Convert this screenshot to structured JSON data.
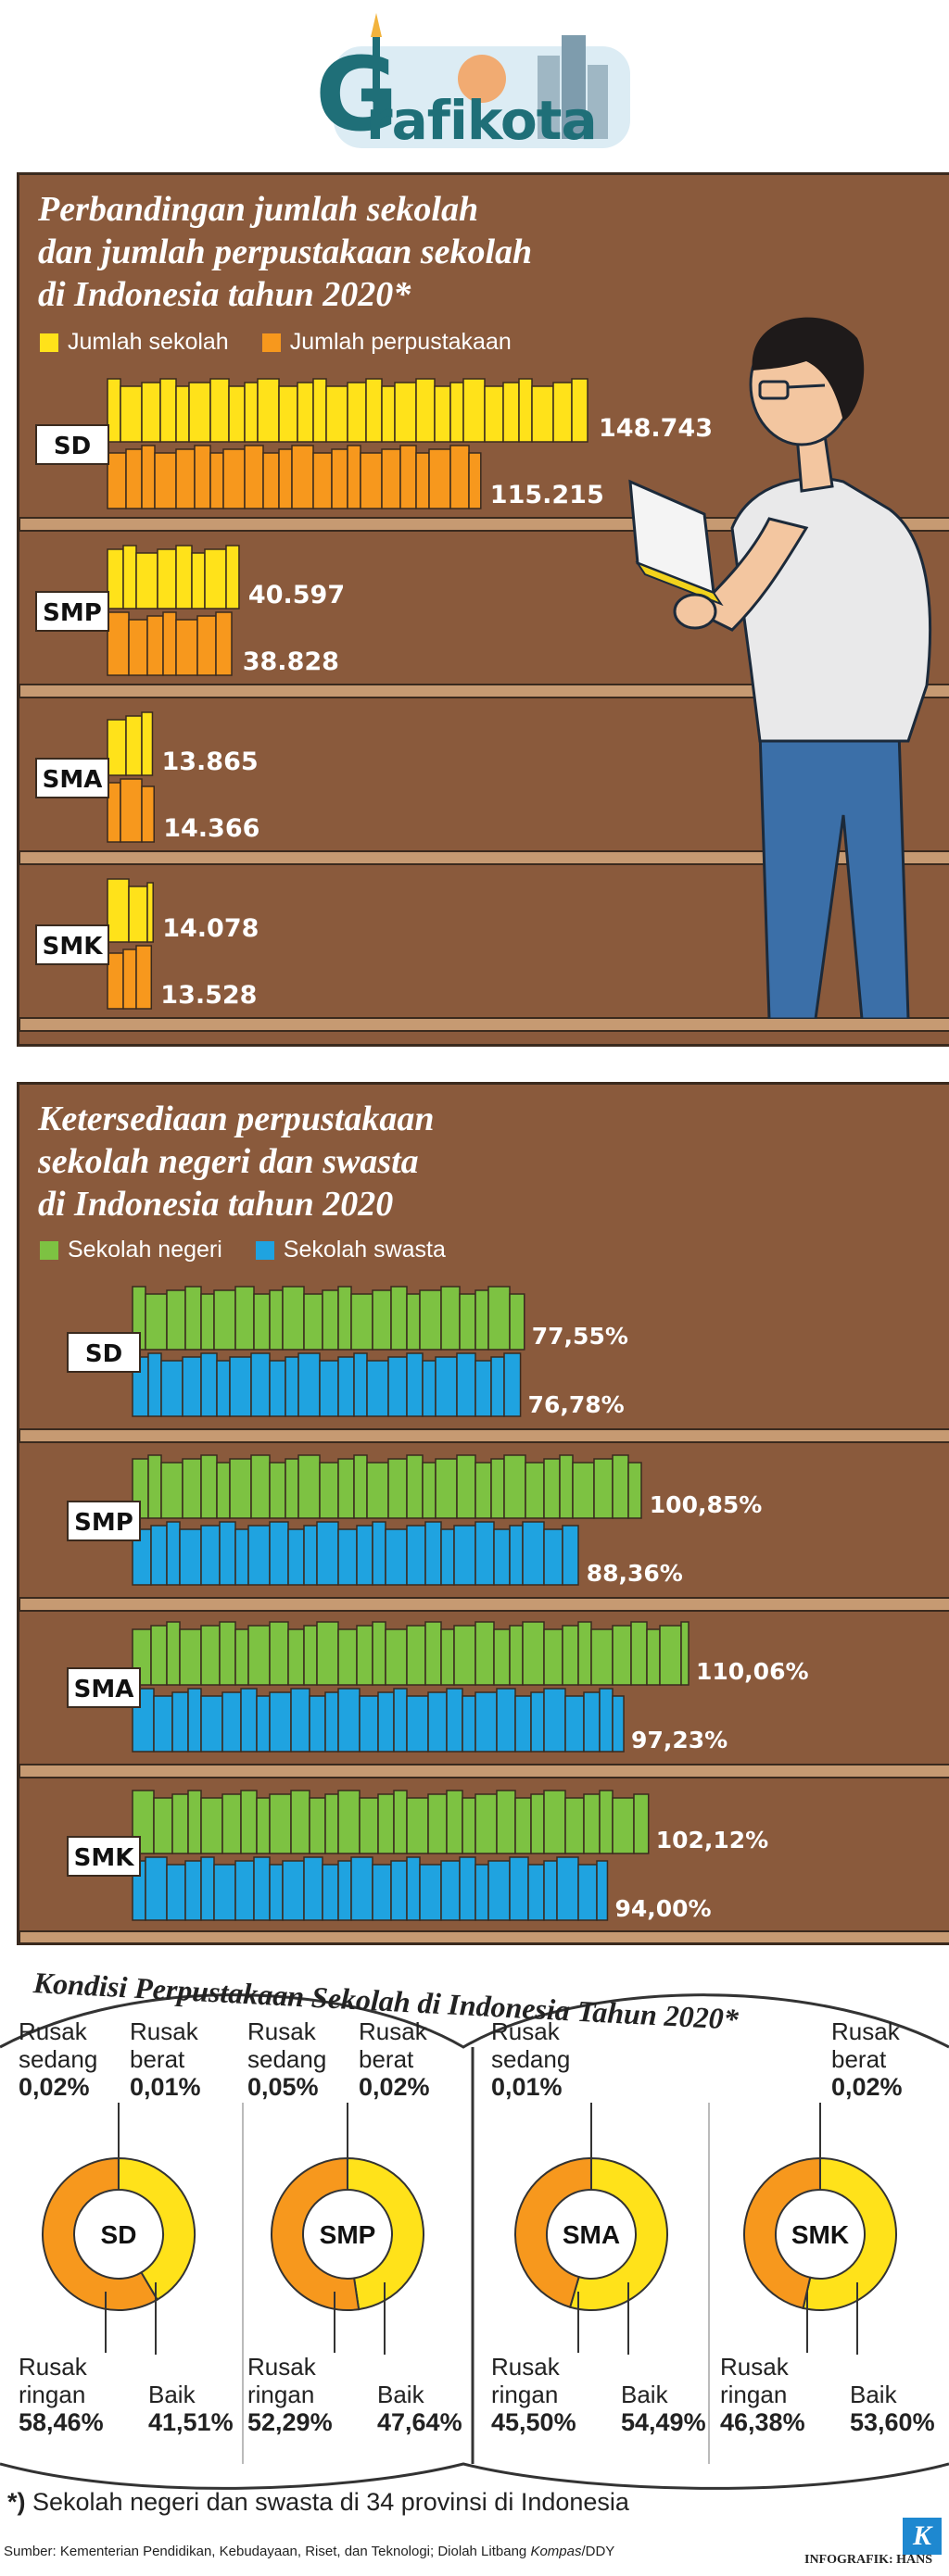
{
  "logo": {
    "text": "Grafikota",
    "main": "rafikota",
    "g": "G"
  },
  "panel1": {
    "title_lines": [
      "Perbandingan jumlah sekolah",
      "dan jumlah perpustakaan sekolah",
      "di Indonesia tahun 2020*"
    ],
    "legend": [
      "Jumlah sekolah",
      "Jumlah perpustakaan"
    ]
  },
  "panel2": {
    "title_lines": [
      "Ketersediaan perpustakaan",
      "sekolah negeri dan swasta",
      "di Indonesia tahun 2020"
    ],
    "legend": [
      "Sekolah negeri",
      "Sekolah swasta"
    ]
  },
  "donuts": {
    "title": "Kondisi Perpustakaan Sekolah di Indonesia Tahun 2020*",
    "items": [
      {
        "name": "SD",
        "rusak_sedang": "0,02%",
        "rusak_berat": "0,01%",
        "rusak_ringan": "58,46%",
        "baik": "41,51%"
      },
      {
        "name": "SMP",
        "rusak_sedang": "0,05%",
        "rusak_berat": "0,02%",
        "rusak_ringan": "52,29%",
        "baik": "47,64%"
      },
      {
        "name": "SMA",
        "rusak_sedang": "0,01%",
        "rusak_berat": "",
        "rusak_ringan": "45,50%",
        "baik": "54,49%"
      },
      {
        "name": "SMK",
        "rusak_sedang": "",
        "rusak_berat": "0,02%",
        "rusak_ringan": "46,38%",
        "baik": "53,60%"
      }
    ],
    "labels": {
      "rusak_sedang": [
        "Rusak",
        "sedang"
      ],
      "rusak_berat": [
        "Rusak",
        "berat"
      ],
      "rusak_ringan": [
        "Rusak",
        "ringan"
      ],
      "baik": "Baik"
    }
  },
  "footnote": {
    "mark": "*)",
    "text": " Sekolah negeri dan swasta di 34 provinsi di Indonesia"
  },
  "source": {
    "prefix": "Sumber: Kementerian Pendidikan, Kebudayaan, Riset, dan Teknologi; Diolah Litbang ",
    "italic": "Kompas",
    "suffix": "/DDY"
  },
  "credit": "INFOGRAFIK: HANS",
  "k_logo": "K",
  "colors": {
    "yellow": "#ffe21a",
    "orange": "#f7981d",
    "green": "#7dc242",
    "blue": "#1fa3e0",
    "wood": "#8a5a3c",
    "shelf": "#c69a72"
  },
  "chart_data": [
    {
      "type": "bar",
      "categories": [
        "SD",
        "SMP",
        "SMA",
        "SMK"
      ],
      "series": [
        {
          "name": "Jumlah sekolah",
          "values": [
            148743,
            40597,
            13865,
            14078
          ],
          "labels": [
            "148.743",
            "40.597",
            "13.865",
            "14.078"
          ]
        },
        {
          "name": "Jumlah perpustakaan",
          "values": [
            115215,
            38828,
            14366,
            13528
          ],
          "labels": [
            "115.215",
            "38.828",
            "14.366",
            "13.528"
          ]
        }
      ],
      "title": "Perbandingan jumlah sekolah dan jumlah perpustakaan sekolah di Indonesia tahun 2020*",
      "orientation": "horizontal"
    },
    {
      "type": "bar",
      "categories": [
        "SD",
        "SMP",
        "SMA",
        "SMK"
      ],
      "series": [
        {
          "name": "Sekolah negeri",
          "values": [
            77.55,
            100.85,
            110.06,
            102.12
          ],
          "labels": [
            "77,55%",
            "100,85%",
            "110,06%",
            "102,12%"
          ]
        },
        {
          "name": "Sekolah swasta",
          "values": [
            76.78,
            88.36,
            97.23,
            94.0
          ],
          "labels": [
            "76,78%",
            "88,36%",
            "97,23%",
            "94,00%"
          ]
        }
      ],
      "title": "Ketersediaan perpustakaan sekolah negeri dan swasta di Indonesia tahun 2020",
      "orientation": "horizontal"
    },
    {
      "type": "pie",
      "title": "Kondisi Perpustakaan Sekolah di Indonesia Tahun 2020*",
      "categories": [
        "Baik",
        "Rusak ringan",
        "Rusak sedang",
        "Rusak berat"
      ],
      "series": [
        {
          "name": "SD",
          "values": [
            41.51,
            58.46,
            0.02,
            0.01
          ]
        },
        {
          "name": "SMP",
          "values": [
            47.64,
            52.29,
            0.05,
            0.02
          ]
        },
        {
          "name": "SMA",
          "values": [
            54.49,
            45.5,
            0.01,
            0
          ]
        },
        {
          "name": "SMK",
          "values": [
            53.6,
            46.38,
            0,
            0.02
          ]
        }
      ]
    }
  ]
}
